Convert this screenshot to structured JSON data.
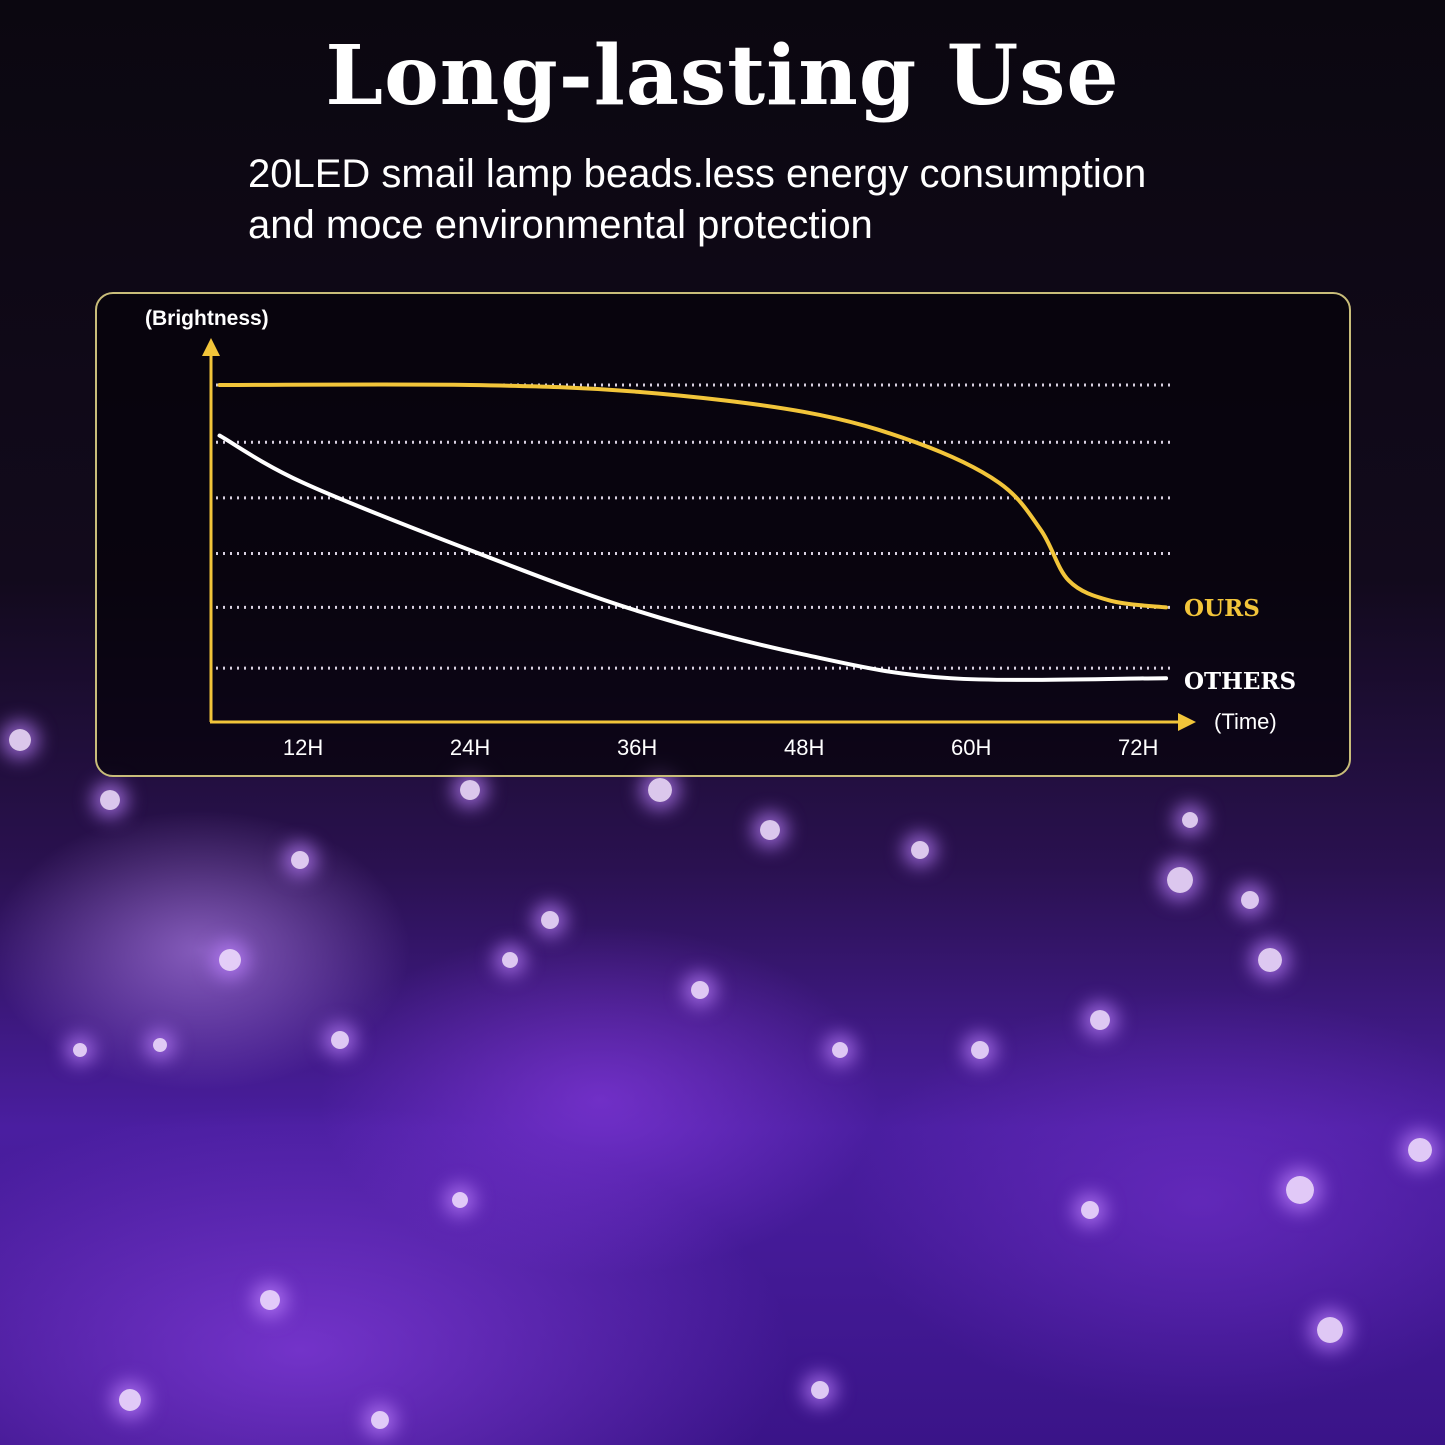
{
  "title": "Long-lasting Use",
  "subtitle_lines": [
    "20LED smail lamp beads.less energy consumption",
    "and moce environmental protection"
  ],
  "colors": {
    "ours": "#f2c53a",
    "others": "#ffffff",
    "axis": "#f2c53a",
    "panel_border": "#c9bd7a"
  },
  "chart_data": {
    "type": "line",
    "ylabel": "(Brightness)",
    "xlabel": "(Time)",
    "x_ticks": [
      "12H",
      "24H",
      "36H",
      "48H",
      "60H",
      "72H"
    ],
    "x_tick_values": [
      12,
      24,
      36,
      48,
      60,
      72
    ],
    "xlim": [
      0,
      74
    ],
    "ylim": [
      0,
      100
    ],
    "grid": "dotted horizontal",
    "grid_levels": [
      100,
      83,
      66.5,
      50,
      34,
      16
    ],
    "series": [
      {
        "name": "OURS",
        "x": [
          6,
          24,
          36,
          48,
          56,
          62,
          65,
          67,
          70,
          74
        ],
        "y": [
          100,
          100,
          98,
          92,
          83,
          71,
          57,
          42,
          36,
          34
        ]
      },
      {
        "name": "OTHERS",
        "x": [
          6,
          12,
          24,
          36,
          48,
          58.5,
          74
        ],
        "y": [
          85,
          71,
          51,
          33,
          20,
          13,
          13
        ]
      }
    ]
  }
}
